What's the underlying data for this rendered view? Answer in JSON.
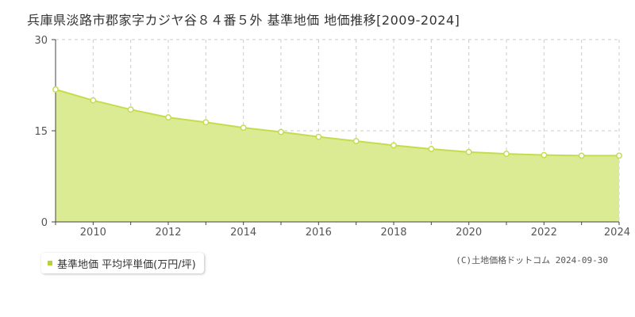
{
  "chart_data": {
    "type": "area",
    "title": "兵庫県淡路市郡家字カジヤ谷８４番５外 基準地価 地価推移[2009-2024]",
    "x": [
      2009,
      2010,
      2011,
      2012,
      2013,
      2014,
      2015,
      2016,
      2017,
      2018,
      2019,
      2020,
      2021,
      2022,
      2023,
      2024
    ],
    "series": [
      {
        "name": "基準地価 平均坪単価(万円/坪)",
        "values": [
          21.8,
          20.0,
          18.5,
          17.2,
          16.4,
          15.5,
          14.8,
          14.0,
          13.3,
          12.6,
          12.0,
          11.5,
          11.2,
          11.0,
          10.9,
          10.9
        ]
      }
    ],
    "xticks": [
      "2010",
      "2012",
      "2014",
      "2016",
      "2018",
      "2020",
      "2022",
      "2024"
    ],
    "yticks": [
      "0",
      "15",
      "30"
    ],
    "xlim": [
      2009,
      2024
    ],
    "ylim": [
      0,
      30
    ],
    "grid": true,
    "legend_position": "bottom-left",
    "colors": {
      "fill": "#dbeb94",
      "line": "#c5dc4e",
      "marker_stroke": "#c5dc4e",
      "legend_swatch": "#b5d334"
    }
  },
  "copyright": "(C)土地価格ドットコム 2024-09-30"
}
